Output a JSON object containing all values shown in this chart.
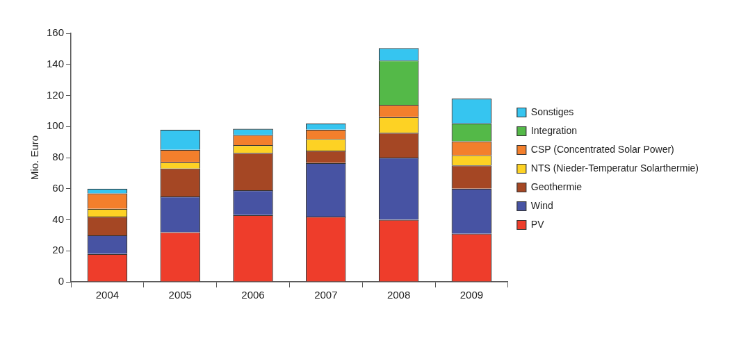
{
  "chart_data": {
    "type": "bar",
    "stacked": true,
    "ylabel": "Mio. Euro",
    "categories": [
      "2004",
      "2005",
      "2006",
      "2007",
      "2008",
      "2009"
    ],
    "series": [
      {
        "name": "PV",
        "color": "#ee3d2b",
        "values": [
          18,
          32,
          43,
          42,
          40,
          31
        ]
      },
      {
        "name": "Wind",
        "color": "#4753a3",
        "values": [
          12,
          23,
          16,
          34.5,
          40,
          29
        ]
      },
      {
        "name": "Geothermie",
        "color": "#a54724",
        "values": [
          12,
          18,
          24,
          8,
          16,
          15
        ]
      },
      {
        "name": "NTS (Nieder-Temperatur Solarthermie)",
        "color": "#fdd224",
        "values": [
          5,
          4,
          5,
          7.5,
          10,
          6.5
        ]
      },
      {
        "name": "CSP (Concentrated Solar Power)",
        "color": "#f37f2c",
        "values": [
          10,
          8,
          6.5,
          6,
          8,
          9
        ]
      },
      {
        "name": "Integration",
        "color": "#54b948",
        "values": [
          null,
          null,
          null,
          null,
          28.5,
          11.5
        ]
      },
      {
        "name": "Sonstiges",
        "color": "#36c5f0",
        "values": [
          3,
          13,
          4,
          4,
          8,
          16
        ]
      }
    ],
    "ylim": [
      0,
      160
    ],
    "yticks": [
      0,
      20,
      40,
      60,
      80,
      100,
      120,
      140,
      160
    ],
    "grid": false,
    "legend": "right"
  }
}
